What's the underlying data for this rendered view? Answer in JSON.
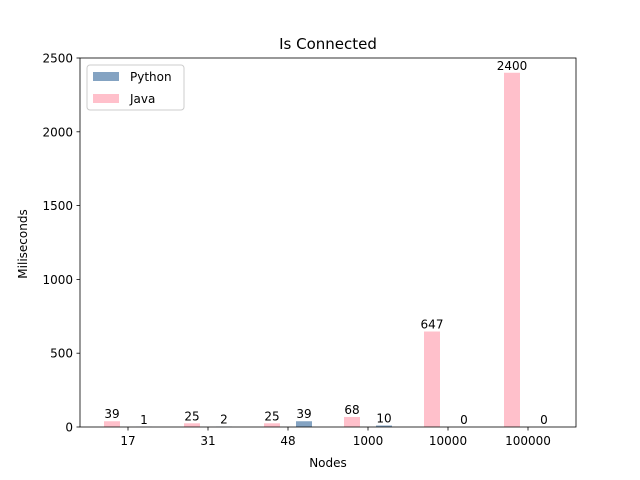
{
  "chart_data": {
    "type": "bar",
    "title": "Is Connected",
    "xlabel": "Nodes",
    "ylabel": "Miliseconds",
    "categories": [
      "17",
      "31",
      "48",
      "1000",
      "10000",
      "100000"
    ],
    "series": [
      {
        "name": "Python",
        "values": [
          1,
          2,
          39,
          10,
          0,
          0
        ],
        "color": "#5b84ad",
        "opacity": 0.75
      },
      {
        "name": "Java",
        "values": [
          39,
          25,
          25,
          68,
          647,
          2400
        ],
        "color": "#ffc0cb",
        "opacity": 1.0
      }
    ],
    "ylim": [
      0,
      2500
    ],
    "yticks": [
      0,
      500,
      1000,
      1500,
      2000,
      2500
    ],
    "grid": false,
    "legend_position": "top-left"
  }
}
